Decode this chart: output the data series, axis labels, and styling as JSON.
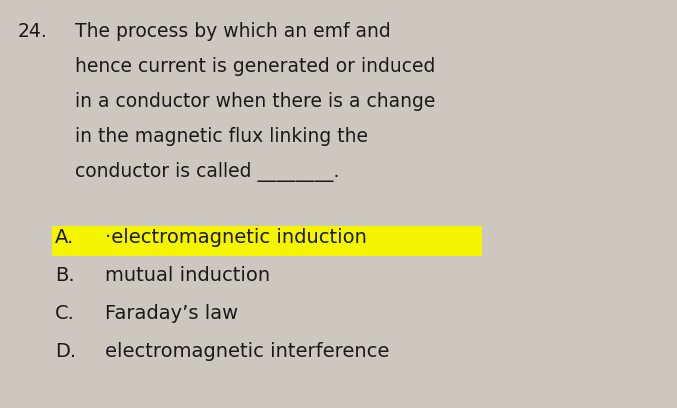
{
  "background_color": "#cdc8bf",
  "question_number": "24.",
  "question_text_lines": [
    "The process by which an emf and",
    "hence current is generated or induced",
    "in a conductor when there is a change",
    "in the magnetic flux linking the",
    "conductor is called ________."
  ],
  "options": [
    {
      "label": "A.",
      "text": "·electromagnetic induction",
      "highlight": true,
      "highlight_color": "#f5f500"
    },
    {
      "label": "B.",
      "text": "mutual induction",
      "highlight": false
    },
    {
      "label": "C.",
      "text": "Faraday’s law",
      "highlight": false
    },
    {
      "label": "D.",
      "text": "electromagnetic interference",
      "highlight": false
    }
  ],
  "question_font_size": 13.5,
  "option_font_size": 14.0,
  "text_color": "#1a1a1a",
  "fig_width": 6.77,
  "fig_height": 4.08,
  "dpi": 100
}
